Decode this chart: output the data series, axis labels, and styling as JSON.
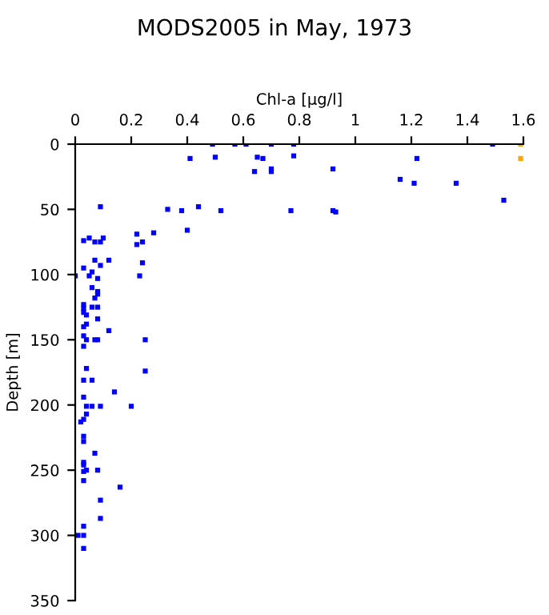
{
  "chart_data": {
    "type": "scatter",
    "title": "MODS2005 in May, 1973",
    "xlabel": "Chl-a [µg/l]",
    "ylabel": "Depth [m]",
    "xlim": [
      0,
      1.6
    ],
    "xticks": [
      0,
      0.2,
      0.4,
      0.6,
      0.8,
      1,
      1.2,
      1.4,
      1.6
    ],
    "ylim": [
      350,
      0
    ],
    "yticks": [
      0,
      50,
      100,
      150,
      200,
      250,
      300,
      350
    ],
    "marker": "square",
    "grid": false,
    "legend": false,
    "series": [
      {
        "color": "#0000ff",
        "x": [
          0.49,
          0.57,
          0.61,
          0.7,
          0.78,
          1.49,
          0.41,
          0.5,
          0.65,
          0.67,
          0.78,
          1.22,
          0.64,
          0.7,
          0.7,
          0.92,
          1.16,
          1.21,
          1.36,
          1.53,
          0.09,
          0.33,
          0.38,
          0.44,
          0.52,
          0.77,
          0.92,
          0.93,
          0.4,
          0.28,
          0.22,
          0.24,
          0.22,
          0.03,
          0.05,
          0.07,
          0.09,
          0.1,
          0.07,
          0.12,
          0.24,
          0.03,
          0.09,
          0.06,
          0.0,
          0.05,
          0.08,
          0.23,
          0.06,
          0.08,
          0.08,
          0.07,
          0.03,
          0.03,
          0.06,
          0.08,
          0.03,
          0.04,
          0.08,
          0.04,
          0.03,
          0.12,
          0.03,
          0.04,
          0.07,
          0.08,
          0.25,
          0.03,
          0.04,
          0.25,
          0.03,
          0.06,
          0.14,
          0.03,
          0.04,
          0.06,
          0.09,
          0.2,
          0.04,
          0.03,
          0.02,
          0.03,
          0.03,
          0.07,
          0.03,
          0.03,
          0.03,
          0.04,
          0.08,
          0.03,
          0.16,
          0.09,
          0.09,
          0.03,
          0.01,
          0.03,
          0.03
        ],
        "values": [
          0,
          0,
          0,
          0,
          0,
          0,
          11,
          10,
          10,
          11,
          9,
          11,
          21,
          19,
          21,
          19,
          27,
          30,
          30,
          43,
          48,
          50,
          51,
          48,
          51,
          51,
          51,
          52,
          66,
          68,
          69,
          75,
          77,
          74,
          72,
          75,
          75,
          72,
          89,
          89,
          91,
          95,
          93,
          98,
          101,
          101,
          103,
          101,
          110,
          113,
          115,
          118,
          123,
          126,
          125,
          125,
          129,
          131,
          134,
          138,
          140,
          143,
          147,
          150,
          150,
          150,
          150,
          155,
          172,
          174,
          181,
          181,
          190,
          194,
          201,
          201,
          201,
          201,
          207,
          211,
          213,
          224,
          228,
          237,
          244,
          246,
          251,
          250,
          250,
          258,
          263,
          273,
          287,
          293,
          300,
          300,
          310
        ]
      },
      {
        "color": "#ffa500",
        "x": [
          1.59,
          1.59
        ],
        "values": [
          0,
          11
        ]
      }
    ]
  }
}
